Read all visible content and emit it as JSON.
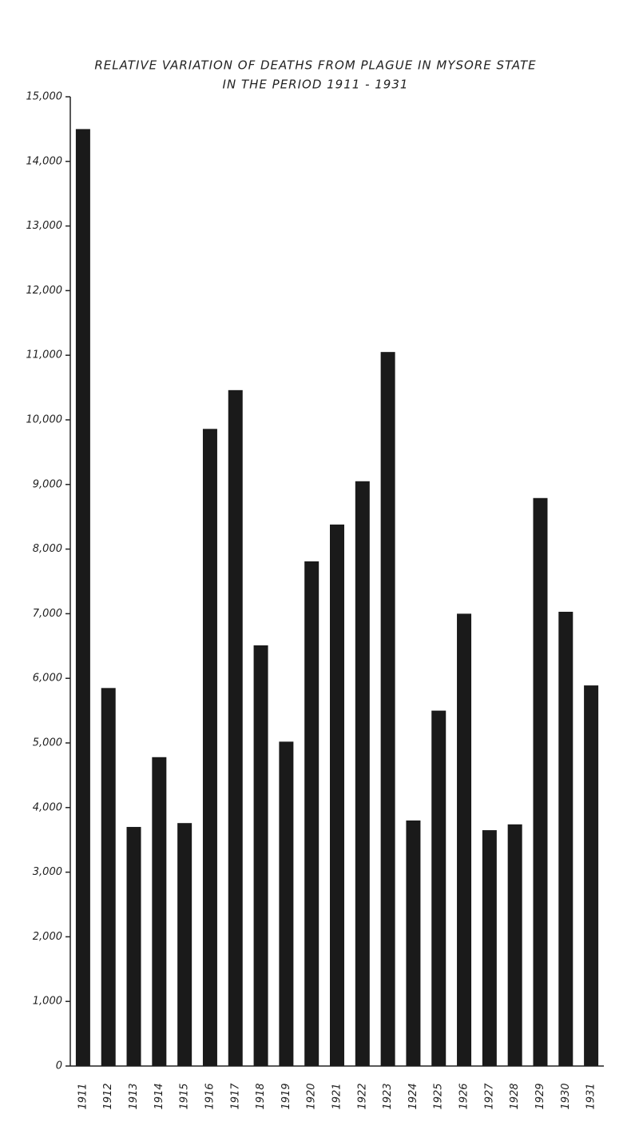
{
  "chart_data": {
    "type": "bar",
    "title": "RELATIVE VARIATION OF DEATHS FROM PLAGUE IN MYSORE STATE",
    "subtitle": "IN THE PERIOD 1911 - 1931",
    "categories": [
      "1911",
      "1912",
      "1913",
      "1914",
      "1915",
      "1916",
      "1917",
      "1918",
      "1919",
      "1920",
      "1921",
      "1922",
      "1923",
      "1924",
      "1925",
      "1926",
      "1927",
      "1928",
      "1929",
      "1930",
      "1931"
    ],
    "values": [
      14500,
      5850,
      3700,
      4780,
      3760,
      9860,
      10460,
      6510,
      5020,
      7810,
      8380,
      9050,
      11050,
      3800,
      5500,
      7000,
      3650,
      3740,
      8790,
      7030,
      5890
    ],
    "color": "#1a1a1a",
    "ylim": [
      0,
      15000
    ],
    "yticks": [
      0,
      {
        "value": 1000,
        "label": "1,000"
      },
      {
        "value": 2000,
        "label": "2,000"
      },
      {
        "value": 3000,
        "label": "3,000"
      },
      {
        "value": 4000,
        "label": "4,000"
      },
      {
        "value": 5000,
        "label": "5,000"
      },
      {
        "value": 6000,
        "label": "6,000"
      },
      {
        "value": 7000,
        "label": "7,000"
      },
      {
        "value": 8000,
        "label": "8,000"
      },
      {
        "value": 9000,
        "label": "9,000"
      },
      {
        "value": 10000,
        "label": "10,000"
      },
      {
        "value": 11000,
        "label": "11,000"
      },
      {
        "value": 12000,
        "label": "12,000"
      },
      {
        "value": 13000,
        "label": "13,000"
      },
      {
        "value": 14000,
        "label": "14,000"
      },
      {
        "value": 15000,
        "label": "15,000"
      }
    ],
    "grid": false
  }
}
